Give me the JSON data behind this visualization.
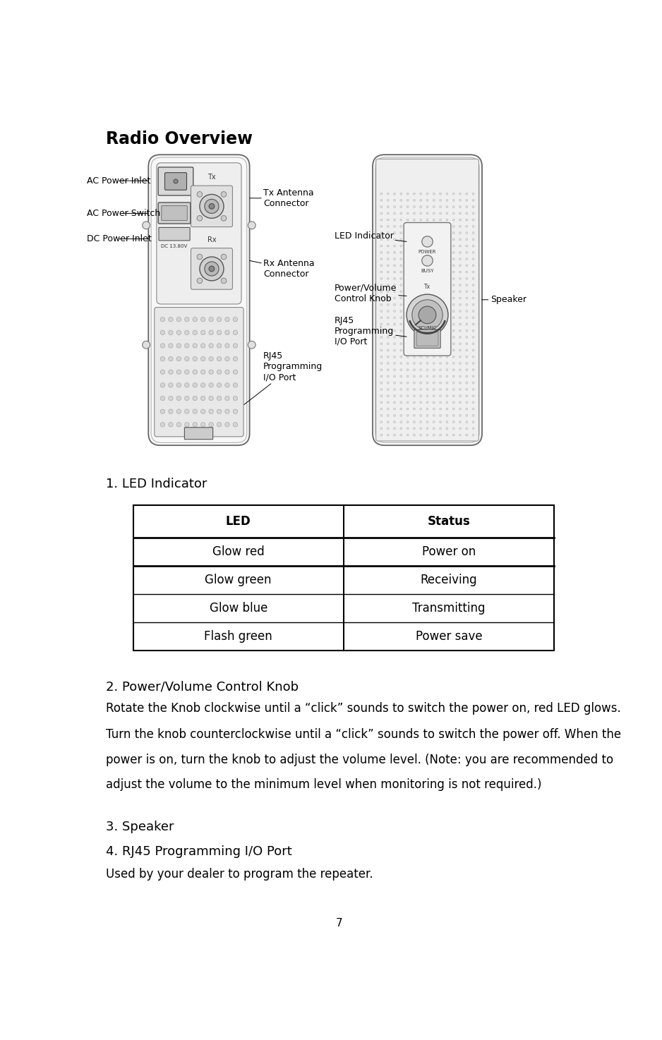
{
  "title": "Radio Overview",
  "title_fontsize": 17,
  "page_number": "7",
  "section1_heading": "1. LED Indicator",
  "section2_heading": "2. Power/Volume Control Knob",
  "section3_heading": "3. Speaker",
  "section4_heading": "4. RJ45 Programming I/O Port",
  "table_headers": [
    "LED",
    "Status"
  ],
  "table_rows": [
    [
      "Glow red",
      "Power on"
    ],
    [
      "Glow green",
      "Receiving"
    ],
    [
      "Glow blue",
      "Transmitting"
    ],
    [
      "Flash green",
      "Power save"
    ]
  ],
  "para1": "Rotate the Knob clockwise until a “click” sounds to switch the power on, red LED glows.",
  "para2_lines": [
    "Turn the knob counterclockwise until a “click” sounds to switch the power off. When the",
    "power is on, turn the knob to adjust the volume level. (Note: you are recommended to",
    "adjust the volume to the minimum level when monitoring is not required.)"
  ],
  "para3": "Used by your dealer to program the repeater.",
  "bg_color": "#ffffff",
  "text_color": "#000000",
  "ann_color": "#000000",
  "heading_fontsize": 13,
  "body_fontsize": 12,
  "table_fontsize": 12,
  "ann_fontsize": 9,
  "diagram_color": "#333333",
  "device_edge": "#555555",
  "device_fill": "#f8f8f8",
  "panel_fill": "#eeeeee",
  "dot_edge": "#aaaaaa",
  "dot_fill": "#e8e8e8"
}
